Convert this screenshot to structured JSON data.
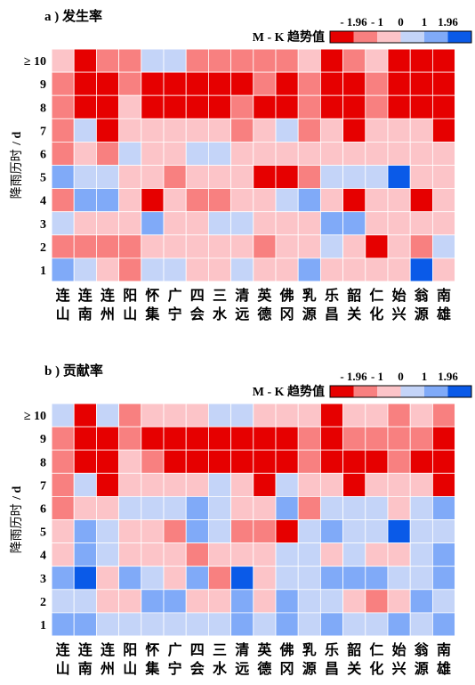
{
  "chart_data": [
    {
      "type": "heatmap",
      "panel_label": "a )",
      "title": "发生率",
      "ylabel": "降雨历时 / d",
      "legend_title": "M - K 趋势值",
      "legend_ticks": [
        "- 1.96",
        "- 1",
        "0",
        "1",
        "1.96"
      ],
      "x_categories": [
        [
          "连",
          "山"
        ],
        [
          "连",
          "南"
        ],
        [
          "连",
          "州"
        ],
        [
          "阳",
          "山"
        ],
        [
          "怀",
          "集"
        ],
        [
          "广",
          "宁"
        ],
        [
          "四",
          "会"
        ],
        [
          "三",
          "水"
        ],
        [
          "清",
          "远"
        ],
        [
          "英",
          "德"
        ],
        [
          "佛",
          "冈"
        ],
        [
          "乳",
          "源"
        ],
        [
          "乐",
          "昌"
        ],
        [
          "韶",
          "关"
        ],
        [
          "仁",
          "化"
        ],
        [
          "始",
          "兴"
        ],
        [
          "翁",
          "源"
        ],
        [
          "南",
          "雄"
        ]
      ],
      "y_categories": [
        "≥ 10",
        "9",
        "8",
        "7",
        "6",
        "5",
        "4",
        "3",
        "2",
        "1"
      ],
      "class_colors": [
        "#e60000",
        "#f88080",
        "#fcc4c8",
        "#c4d4f8",
        "#80aaf8",
        "#0a5ae8"
      ],
      "cells": [
        [
          2,
          0,
          1,
          1,
          3,
          3,
          1,
          1,
          1,
          1,
          1,
          2,
          0,
          1,
          2,
          0,
          0,
          0
        ],
        [
          1,
          0,
          0,
          1,
          0,
          0,
          0,
          0,
          0,
          1,
          0,
          1,
          0,
          0,
          1,
          0,
          0,
          0
        ],
        [
          1,
          0,
          0,
          2,
          0,
          0,
          0,
          0,
          1,
          0,
          0,
          1,
          0,
          0,
          1,
          0,
          0,
          0
        ],
        [
          1,
          3,
          0,
          2,
          2,
          2,
          2,
          2,
          1,
          2,
          3,
          1,
          2,
          0,
          2,
          2,
          2,
          0
        ],
        [
          1,
          2,
          1,
          3,
          2,
          2,
          3,
          3,
          2,
          2,
          2,
          2,
          2,
          2,
          2,
          2,
          2,
          2
        ],
        [
          4,
          3,
          3,
          2,
          2,
          1,
          2,
          2,
          2,
          0,
          0,
          1,
          3,
          3,
          3,
          5,
          2,
          2
        ],
        [
          1,
          4,
          4,
          2,
          0,
          2,
          1,
          1,
          2,
          2,
          3,
          4,
          2,
          0,
          2,
          2,
          0,
          2
        ],
        [
          3,
          2,
          2,
          2,
          4,
          2,
          2,
          3,
          3,
          2,
          2,
          2,
          4,
          4,
          2,
          2,
          2,
          2
        ],
        [
          1,
          1,
          1,
          1,
          2,
          2,
          2,
          2,
          2,
          1,
          2,
          2,
          3,
          2,
          0,
          2,
          1,
          3
        ],
        [
          4,
          3,
          2,
          1,
          3,
          3,
          2,
          2,
          3,
          2,
          2,
          4,
          2,
          2,
          2,
          2,
          5,
          2
        ]
      ]
    },
    {
      "type": "heatmap",
      "panel_label": "b )",
      "title": "贡献率",
      "ylabel": "降雨历时 / d",
      "legend_title": "M - K 趋势值",
      "legend_ticks": [
        "- 1.96",
        "- 1",
        "0",
        "1",
        "1.96"
      ],
      "x_categories": [
        [
          "连",
          "山"
        ],
        [
          "连",
          "南"
        ],
        [
          "连",
          "州"
        ],
        [
          "阳",
          "山"
        ],
        [
          "怀",
          "集"
        ],
        [
          "广",
          "宁"
        ],
        [
          "四",
          "会"
        ],
        [
          "三",
          "水"
        ],
        [
          "清",
          "远"
        ],
        [
          "英",
          "德"
        ],
        [
          "佛",
          "冈"
        ],
        [
          "乳",
          "源"
        ],
        [
          "乐",
          "昌"
        ],
        [
          "韶",
          "关"
        ],
        [
          "仁",
          "化"
        ],
        [
          "始",
          "兴"
        ],
        [
          "翁",
          "源"
        ],
        [
          "南",
          "雄"
        ]
      ],
      "y_categories": [
        "≥ 10",
        "9",
        "8",
        "7",
        "6",
        "5",
        "4",
        "3",
        "2",
        "1"
      ],
      "class_colors": [
        "#e60000",
        "#f88080",
        "#fcc4c8",
        "#c4d4f8",
        "#80aaf8",
        "#0a5ae8"
      ],
      "cells": [
        [
          3,
          0,
          3,
          1,
          2,
          2,
          2,
          3,
          3,
          2,
          2,
          2,
          0,
          2,
          2,
          1,
          2,
          1
        ],
        [
          1,
          0,
          0,
          1,
          0,
          0,
          0,
          0,
          0,
          0,
          0,
          1,
          0,
          1,
          1,
          1,
          1,
          0
        ],
        [
          1,
          0,
          0,
          2,
          1,
          0,
          0,
          0,
          0,
          0,
          0,
          1,
          0,
          0,
          0,
          1,
          0,
          0
        ],
        [
          1,
          3,
          0,
          2,
          2,
          2,
          2,
          3,
          2,
          0,
          3,
          2,
          2,
          0,
          2,
          2,
          2,
          0
        ],
        [
          1,
          2,
          2,
          3,
          3,
          3,
          4,
          3,
          2,
          2,
          4,
          1,
          3,
          3,
          3,
          2,
          3,
          4
        ],
        [
          2,
          4,
          3,
          2,
          2,
          1,
          4,
          3,
          1,
          1,
          0,
          3,
          4,
          3,
          3,
          5,
          3,
          3
        ],
        [
          2,
          4,
          3,
          2,
          2,
          2,
          1,
          2,
          2,
          2,
          3,
          3,
          2,
          3,
          2,
          2,
          3,
          4
        ],
        [
          4,
          5,
          2,
          4,
          3,
          2,
          4,
          1,
          5,
          2,
          3,
          3,
          4,
          4,
          4,
          3,
          3,
          4
        ],
        [
          3,
          3,
          2,
          2,
          4,
          4,
          2,
          2,
          4,
          2,
          4,
          3,
          3,
          2,
          1,
          2,
          4,
          3
        ],
        [
          4,
          4,
          3,
          3,
          3,
          3,
          3,
          3,
          4,
          3,
          4,
          3,
          4,
          3,
          3,
          4,
          3,
          4
        ]
      ]
    }
  ]
}
